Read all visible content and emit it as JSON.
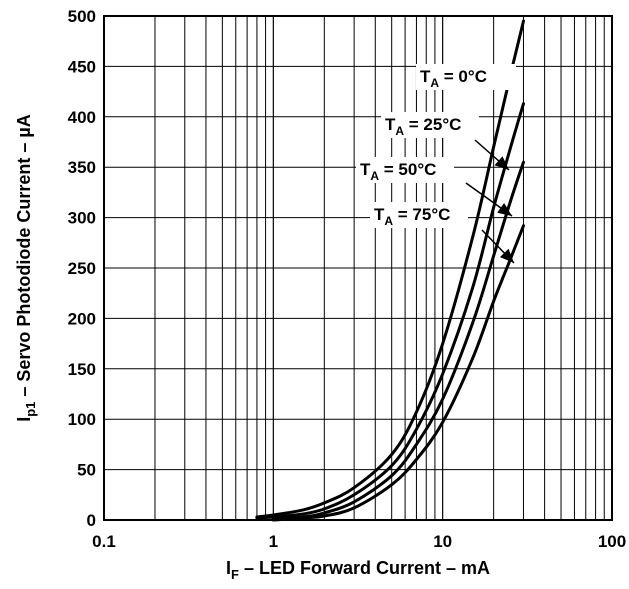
{
  "chart_data": {
    "type": "line",
    "title": "",
    "xlabel": {
      "main": "I",
      "sub": "F",
      "rest": " – LED Forward Current – mA"
    },
    "ylabel": {
      "main": "I",
      "sub": "p1",
      "rest": " – Servo Photodiode Current – µA"
    },
    "x_scale": "log",
    "xlim": [
      0.1,
      100
    ],
    "ylim": [
      0,
      500
    ],
    "grid": true,
    "x_ticks": [
      0.1,
      1,
      10,
      100
    ],
    "x_tick_labels": [
      "0.1",
      "1",
      "10",
      "100"
    ],
    "y_ticks": [
      0,
      50,
      100,
      150,
      200,
      250,
      300,
      350,
      400,
      450,
      500
    ],
    "y_tick_labels": [
      "0",
      "50",
      "100",
      "150",
      "200",
      "250",
      "300",
      "350",
      "400",
      "450",
      "500"
    ],
    "series": [
      {
        "name": "TA = 0°C",
        "x": [
          0.8,
          1,
          1.5,
          2,
          3,
          5,
          7,
          10,
          15,
          20,
          25,
          30
        ],
        "y": [
          3,
          5,
          10,
          17,
          32,
          65,
          107,
          175,
          280,
          370,
          440,
          495
        ]
      },
      {
        "name": "TA = 25°C",
        "x": [
          0.8,
          1,
          1.5,
          2,
          3,
          5,
          7,
          10,
          15,
          20,
          25,
          30
        ],
        "y": [
          2,
          3,
          6,
          11,
          25,
          54,
          90,
          145,
          230,
          310,
          368,
          413
        ]
      },
      {
        "name": "TA = 50°C",
        "x": [
          1,
          1.5,
          2,
          3,
          5,
          7,
          10,
          15,
          20,
          25,
          30
        ],
        "y": [
          1,
          3,
          7,
          18,
          44,
          75,
          120,
          195,
          262,
          315,
          355
        ]
      },
      {
        "name": "TA = 75°C",
        "x": [
          1,
          1.5,
          2,
          3,
          5,
          7,
          10,
          15,
          20,
          25,
          30
        ],
        "y": [
          0,
          2,
          4,
          12,
          35,
          60,
          97,
          160,
          217,
          258,
          292
        ]
      }
    ],
    "annotations": [
      {
        "main": "T",
        "sub": "A",
        "rest": " = 0°C"
      },
      {
        "main": "T",
        "sub": "A",
        "rest": " = 25°C"
      },
      {
        "main": "T",
        "sub": "A",
        "rest": " = 50°C"
      },
      {
        "main": "T",
        "sub": "A",
        "rest": " = 75°C"
      }
    ]
  }
}
